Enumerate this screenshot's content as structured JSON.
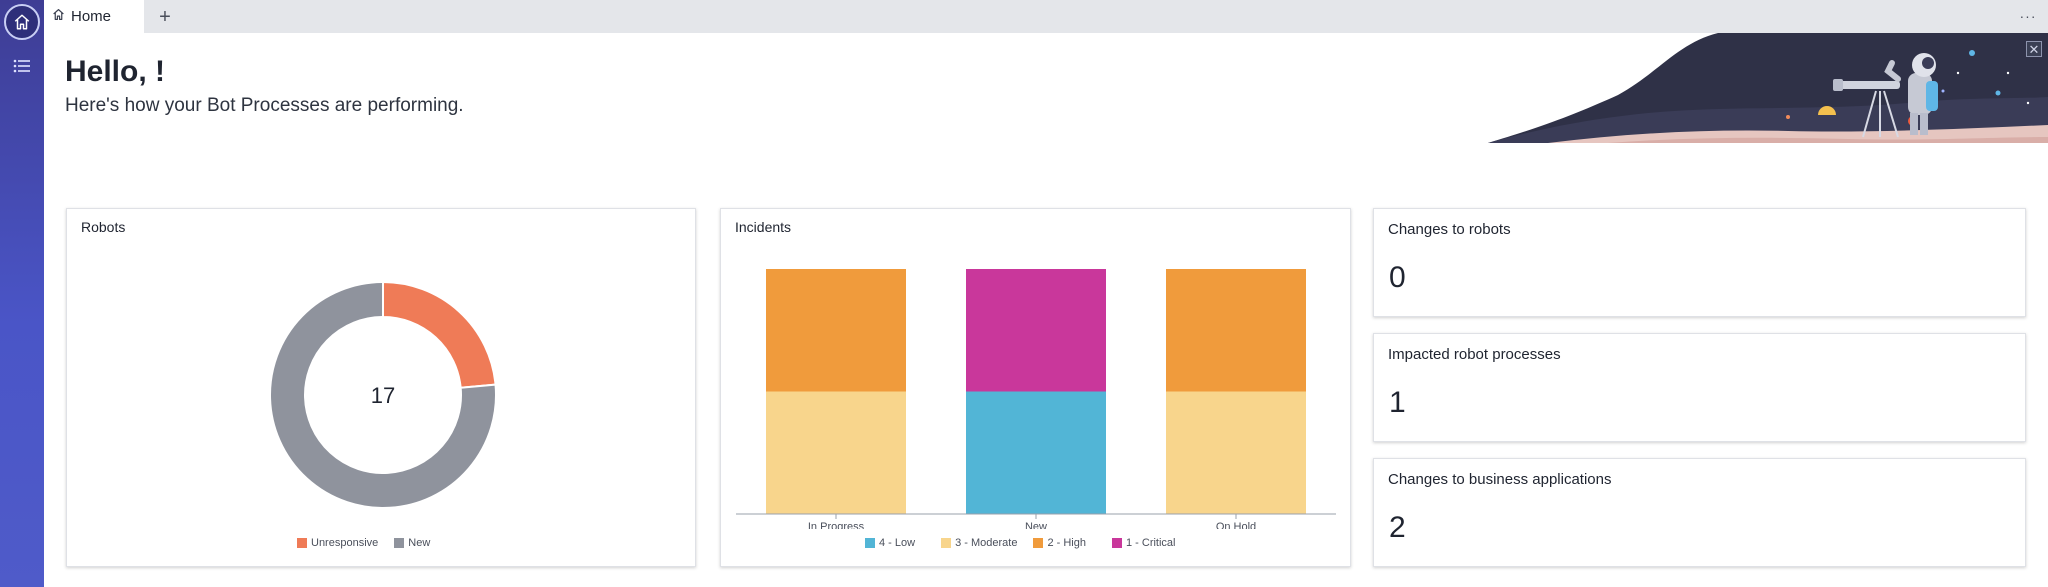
{
  "tabs": [
    {
      "label": "Home",
      "icon": "home-icon"
    }
  ],
  "rail": {
    "home_icon": "home-icon",
    "list_icon": "list-icon"
  },
  "header": {
    "greeting": "Hello, !",
    "subtitle": "Here's how your Bot Processes are performing."
  },
  "robots_card": {
    "title": "Robots",
    "center_value": "17",
    "legend": [
      {
        "label": "Unresponsive",
        "color": "#ef7b57"
      },
      {
        "label": "New",
        "color": "#8f939d"
      }
    ]
  },
  "incidents_card": {
    "title": "Incidents",
    "legend": [
      {
        "label": "4 - Low",
        "color": "#52b5d6"
      },
      {
        "label": "3 - Moderate",
        "color": "#f8d58c"
      },
      {
        "label": "2 - High",
        "color": "#f09b3c"
      },
      {
        "label": "1 - Critical",
        "color": "#c9379b"
      }
    ]
  },
  "stats": [
    {
      "title": "Changes to robots",
      "value": "0"
    },
    {
      "title": "Impacted robot processes",
      "value": "1"
    },
    {
      "title": "Changes to business applications",
      "value": "2"
    }
  ],
  "chart_data": [
    {
      "type": "pie",
      "title": "Robots",
      "center_label": "17",
      "categories": [
        "Unresponsive",
        "New"
      ],
      "values": [
        4,
        13
      ],
      "colors": [
        "#ef7b57",
        "#8f939d"
      ],
      "legend": "bottom"
    },
    {
      "type": "bar",
      "stacked": true,
      "title": "Incidents",
      "categories": [
        "In Progress",
        "New",
        "On Hold"
      ],
      "series": [
        {
          "name": "4 - Low",
          "color": "#52b5d6",
          "values": [
            0,
            1,
            0
          ]
        },
        {
          "name": "3 - Moderate",
          "color": "#f8d58c",
          "values": [
            1,
            0,
            1
          ]
        },
        {
          "name": "2 - High",
          "color": "#f09b3c",
          "values": [
            1,
            0,
            1
          ]
        },
        {
          "name": "1 - Critical",
          "color": "#c9379b",
          "values": [
            0,
            1,
            0
          ]
        }
      ],
      "ylim": [
        0,
        2
      ],
      "grid": false,
      "legend": "bottom"
    }
  ]
}
